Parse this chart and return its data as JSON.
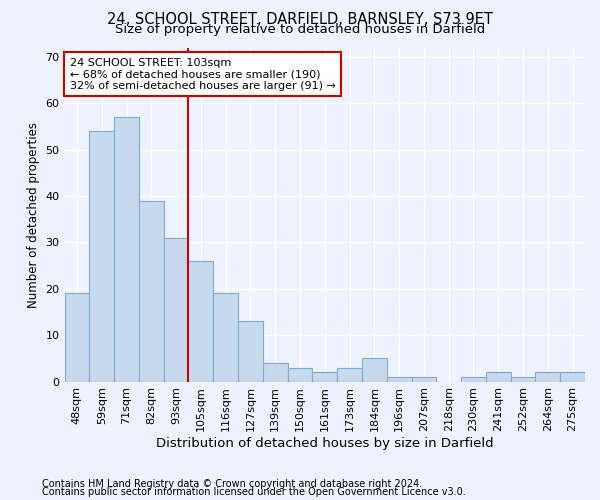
{
  "title1": "24, SCHOOL STREET, DARFIELD, BARNSLEY, S73 9ET",
  "title2": "Size of property relative to detached houses in Darfield",
  "xlabel": "Distribution of detached houses by size in Darfield",
  "ylabel": "Number of detached properties",
  "footnote1": "Contains HM Land Registry data © Crown copyright and database right 2024.",
  "footnote2": "Contains public sector information licensed under the Open Government Licence v3.0.",
  "categories": [
    "48sqm",
    "59sqm",
    "71sqm",
    "82sqm",
    "93sqm",
    "105sqm",
    "116sqm",
    "127sqm",
    "139sqm",
    "150sqm",
    "161sqm",
    "173sqm",
    "184sqm",
    "196sqm",
    "207sqm",
    "218sqm",
    "230sqm",
    "241sqm",
    "252sqm",
    "264sqm",
    "275sqm"
  ],
  "values": [
    19,
    54,
    57,
    39,
    31,
    26,
    19,
    13,
    4,
    3,
    2,
    3,
    5,
    1,
    1,
    0,
    1,
    2,
    1,
    2,
    2
  ],
  "bar_color": "#c8d9ee",
  "bar_edge_color": "#7aadd4",
  "marker_line_color": "#cc0000",
  "marker_label": "24 SCHOOL STREET: 103sqm",
  "annotation_line1": "← 68% of detached houses are smaller (190)",
  "annotation_line2": "32% of semi-detached houses are larger (91) →",
  "annotation_box_facecolor": "#ffffff",
  "annotation_box_edgecolor": "#cc0000",
  "ylim": [
    0,
    72
  ],
  "yticks": [
    0,
    10,
    20,
    30,
    40,
    50,
    60,
    70
  ],
  "background_color": "#eef2fc",
  "grid_color": "#ffffff",
  "title1_fontsize": 10.5,
  "title2_fontsize": 9.5,
  "xlabel_fontsize": 9.5,
  "ylabel_fontsize": 8.5,
  "tick_fontsize": 8,
  "annotation_fontsize": 8,
  "footnote_fontsize": 7
}
